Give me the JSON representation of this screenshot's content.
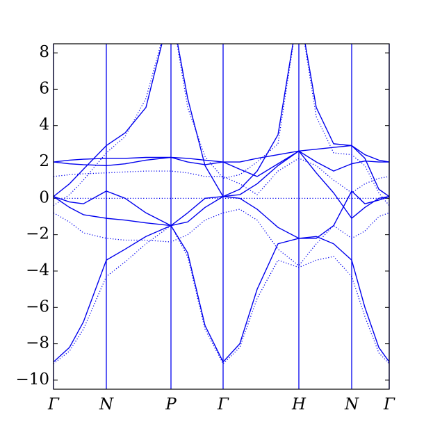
{
  "chart_data": {
    "type": "line",
    "x": [
      0,
      0.23,
      0.43,
      0.76,
      1.03,
      1.33,
      1.69,
      1.93,
      2.18,
      2.44,
      2.68,
      2.93,
      3.23,
      3.53,
      3.78,
      4.03,
      4.29,
      4.48,
      4.68,
      4.83
    ],
    "xlim": [
      0,
      4.83
    ],
    "xticks": [
      {
        "value": 0,
        "label": "Γ"
      },
      {
        "value": 0.76,
        "label": "N"
      },
      {
        "value": 1.69,
        "label": "P"
      },
      {
        "value": 2.44,
        "label": "Γ"
      },
      {
        "value": 3.53,
        "label": "H"
      },
      {
        "value": 4.29,
        "label": "N"
      },
      {
        "value": 4.83,
        "label": "Γ"
      }
    ],
    "xgrid": true,
    "xgrid_color": "#0000ee",
    "ylim": [
      -10.5,
      8.5
    ],
    "yticks": [
      {
        "value": -10,
        "label": "−10"
      },
      {
        "value": -8,
        "label": "−8"
      },
      {
        "value": -6,
        "label": "−6"
      },
      {
        "value": -4,
        "label": "−4"
      },
      {
        "value": -2,
        "label": "−2"
      },
      0,
      2,
      4,
      6,
      8
    ],
    "series": [
      {
        "color": "#0000ee",
        "linestyle": "solid",
        "values": [
          -9.0,
          -8.2,
          -6.8,
          -3.4,
          -2.8,
          -2.1,
          -1.5,
          -3.0,
          -7.0,
          -9.0,
          -8.0,
          -5.0,
          -2.5,
          -2.2,
          -2.1,
          -2.5,
          -3.4,
          -6.0,
          -8.2,
          -9.0
        ]
      },
      {
        "color": "#0000ee",
        "linestyle": "solid",
        "values": [
          0.1,
          -0.2,
          -0.3,
          0.4,
          0.0,
          -0.8,
          -1.5,
          -1.3,
          -0.5,
          0.1,
          0.0,
          -0.6,
          -1.6,
          -2.2,
          -2.2,
          -1.5,
          0.4,
          -0.3,
          -0.1,
          0.1
        ]
      },
      {
        "color": "#0000ee",
        "linestyle": "solid",
        "values": [
          0.1,
          -0.5,
          -0.9,
          -1.1,
          -1.2,
          -1.35,
          -1.5,
          -0.8,
          0.0,
          0.1,
          0.2,
          0.8,
          1.8,
          2.6,
          1.4,
          0.3,
          -1.1,
          -0.5,
          0.0,
          0.1
        ]
      },
      {
        "color": "#0000ee",
        "linestyle": "solid",
        "values": [
          2.0,
          1.9,
          1.85,
          1.8,
          1.9,
          2.1,
          2.25,
          2.0,
          1.85,
          2.0,
          1.6,
          1.2,
          1.9,
          2.6,
          2.0,
          1.5,
          1.9,
          2.05,
          2.0,
          2.0
        ]
      },
      {
        "color": "#0000ee",
        "linestyle": "solid",
        "values": [
          2.0,
          2.1,
          2.15,
          2.2,
          2.2,
          2.25,
          2.25,
          2.2,
          2.1,
          2.0,
          2.0,
          2.2,
          2.4,
          2.6,
          2.7,
          2.8,
          2.9,
          2.4,
          2.1,
          2.0
        ]
      },
      {
        "color": "#0000ee",
        "linestyle": "solid",
        "values": [
          0.1,
          0.8,
          1.6,
          2.9,
          3.6,
          5.0,
          10.5,
          5.5,
          1.8,
          0.1,
          0.5,
          1.5,
          3.5,
          10.5,
          5.0,
          3.0,
          2.9,
          2.2,
          0.5,
          0.1
        ]
      },
      {
        "color": "#0000ee",
        "linestyle": "dotted",
        "values": [
          -9.1,
          -8.4,
          -7.2,
          -4.3,
          -3.5,
          -2.5,
          -1.5,
          -3.2,
          -7.2,
          -9.1,
          -8.2,
          -5.5,
          -3.4,
          -3.8,
          -3.4,
          -3.2,
          -4.3,
          -6.5,
          -8.5,
          -9.1
        ]
      },
      {
        "color": "#0000ee",
        "linestyle": "dotted",
        "values": [
          -0.8,
          -1.3,
          -1.9,
          -2.2,
          -2.3,
          -2.3,
          -2.4,
          -2.0,
          -1.2,
          -0.8,
          -0.6,
          -1.2,
          -2.8,
          -3.7,
          -2.5,
          -1.5,
          -2.2,
          -1.8,
          -1.0,
          -0.8
        ]
      },
      {
        "color": "#0000ee",
        "linestyle": "dotted",
        "values": [
          1.2,
          1.3,
          1.35,
          1.4,
          1.45,
          1.5,
          1.5,
          1.4,
          1.2,
          1.2,
          0.8,
          0.2,
          1.5,
          2.2,
          1.8,
          1.0,
          0.3,
          0.8,
          1.1,
          1.2
        ]
      },
      {
        "color": "#0000ee",
        "linestyle": "dotted",
        "values": [
          -0.4,
          0.2,
          1.0,
          2.5,
          3.4,
          5.5,
          10.5,
          5.0,
          2.3,
          1.1,
          1.3,
          2.0,
          3.0,
          10.5,
          4.5,
          2.5,
          2.4,
          1.8,
          0.3,
          -0.4
        ]
      },
      {
        "color": "#0000ee",
        "linestyle": "dotted",
        "values": [
          0,
          0,
          0,
          0,
          0,
          0,
          0,
          0,
          0,
          0,
          0,
          0,
          0,
          0,
          0,
          0,
          0,
          0,
          0,
          0
        ]
      }
    ]
  }
}
